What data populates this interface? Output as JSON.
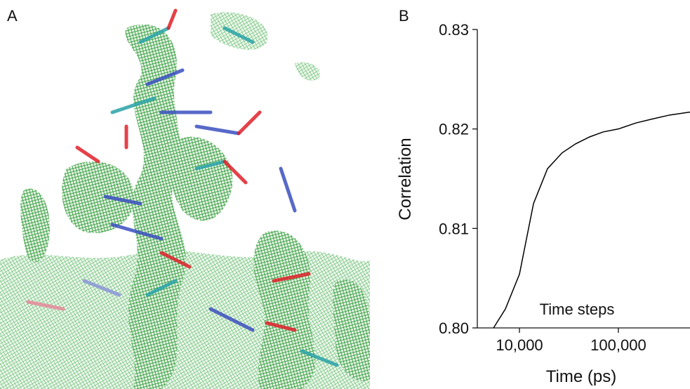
{
  "panel_labels": [
    "A",
    "B"
  ],
  "chart_data": {
    "type": "line",
    "ylabel": "Correlation",
    "xlabel": "Time (ps)",
    "annotation": "Time steps",
    "log_x": true,
    "color": "#000000",
    "x": [
      5470,
      7210,
      10000,
      13870,
      19200,
      27000,
      36900,
      51200,
      70000,
      100000,
      150000,
      220000,
      330000,
      530000
    ],
    "values": [
      0.8,
      0.8019,
      0.8054,
      0.8125,
      0.816,
      0.8176,
      0.8185,
      0.8192,
      0.8197,
      0.82,
      0.8206,
      0.821,
      0.8214,
      0.8217
    ],
    "xlim": [
      3750,
      530000
    ],
    "ylim": [
      0.8,
      0.83
    ],
    "xticks": [
      {
        "value": 10000,
        "label": "10,000"
      },
      {
        "value": 100000,
        "label": "100,000"
      }
    ],
    "yticks": [
      {
        "value": 0.8,
        "label": "0.80"
      },
      0.81,
      0.82,
      0.83
    ]
  }
}
